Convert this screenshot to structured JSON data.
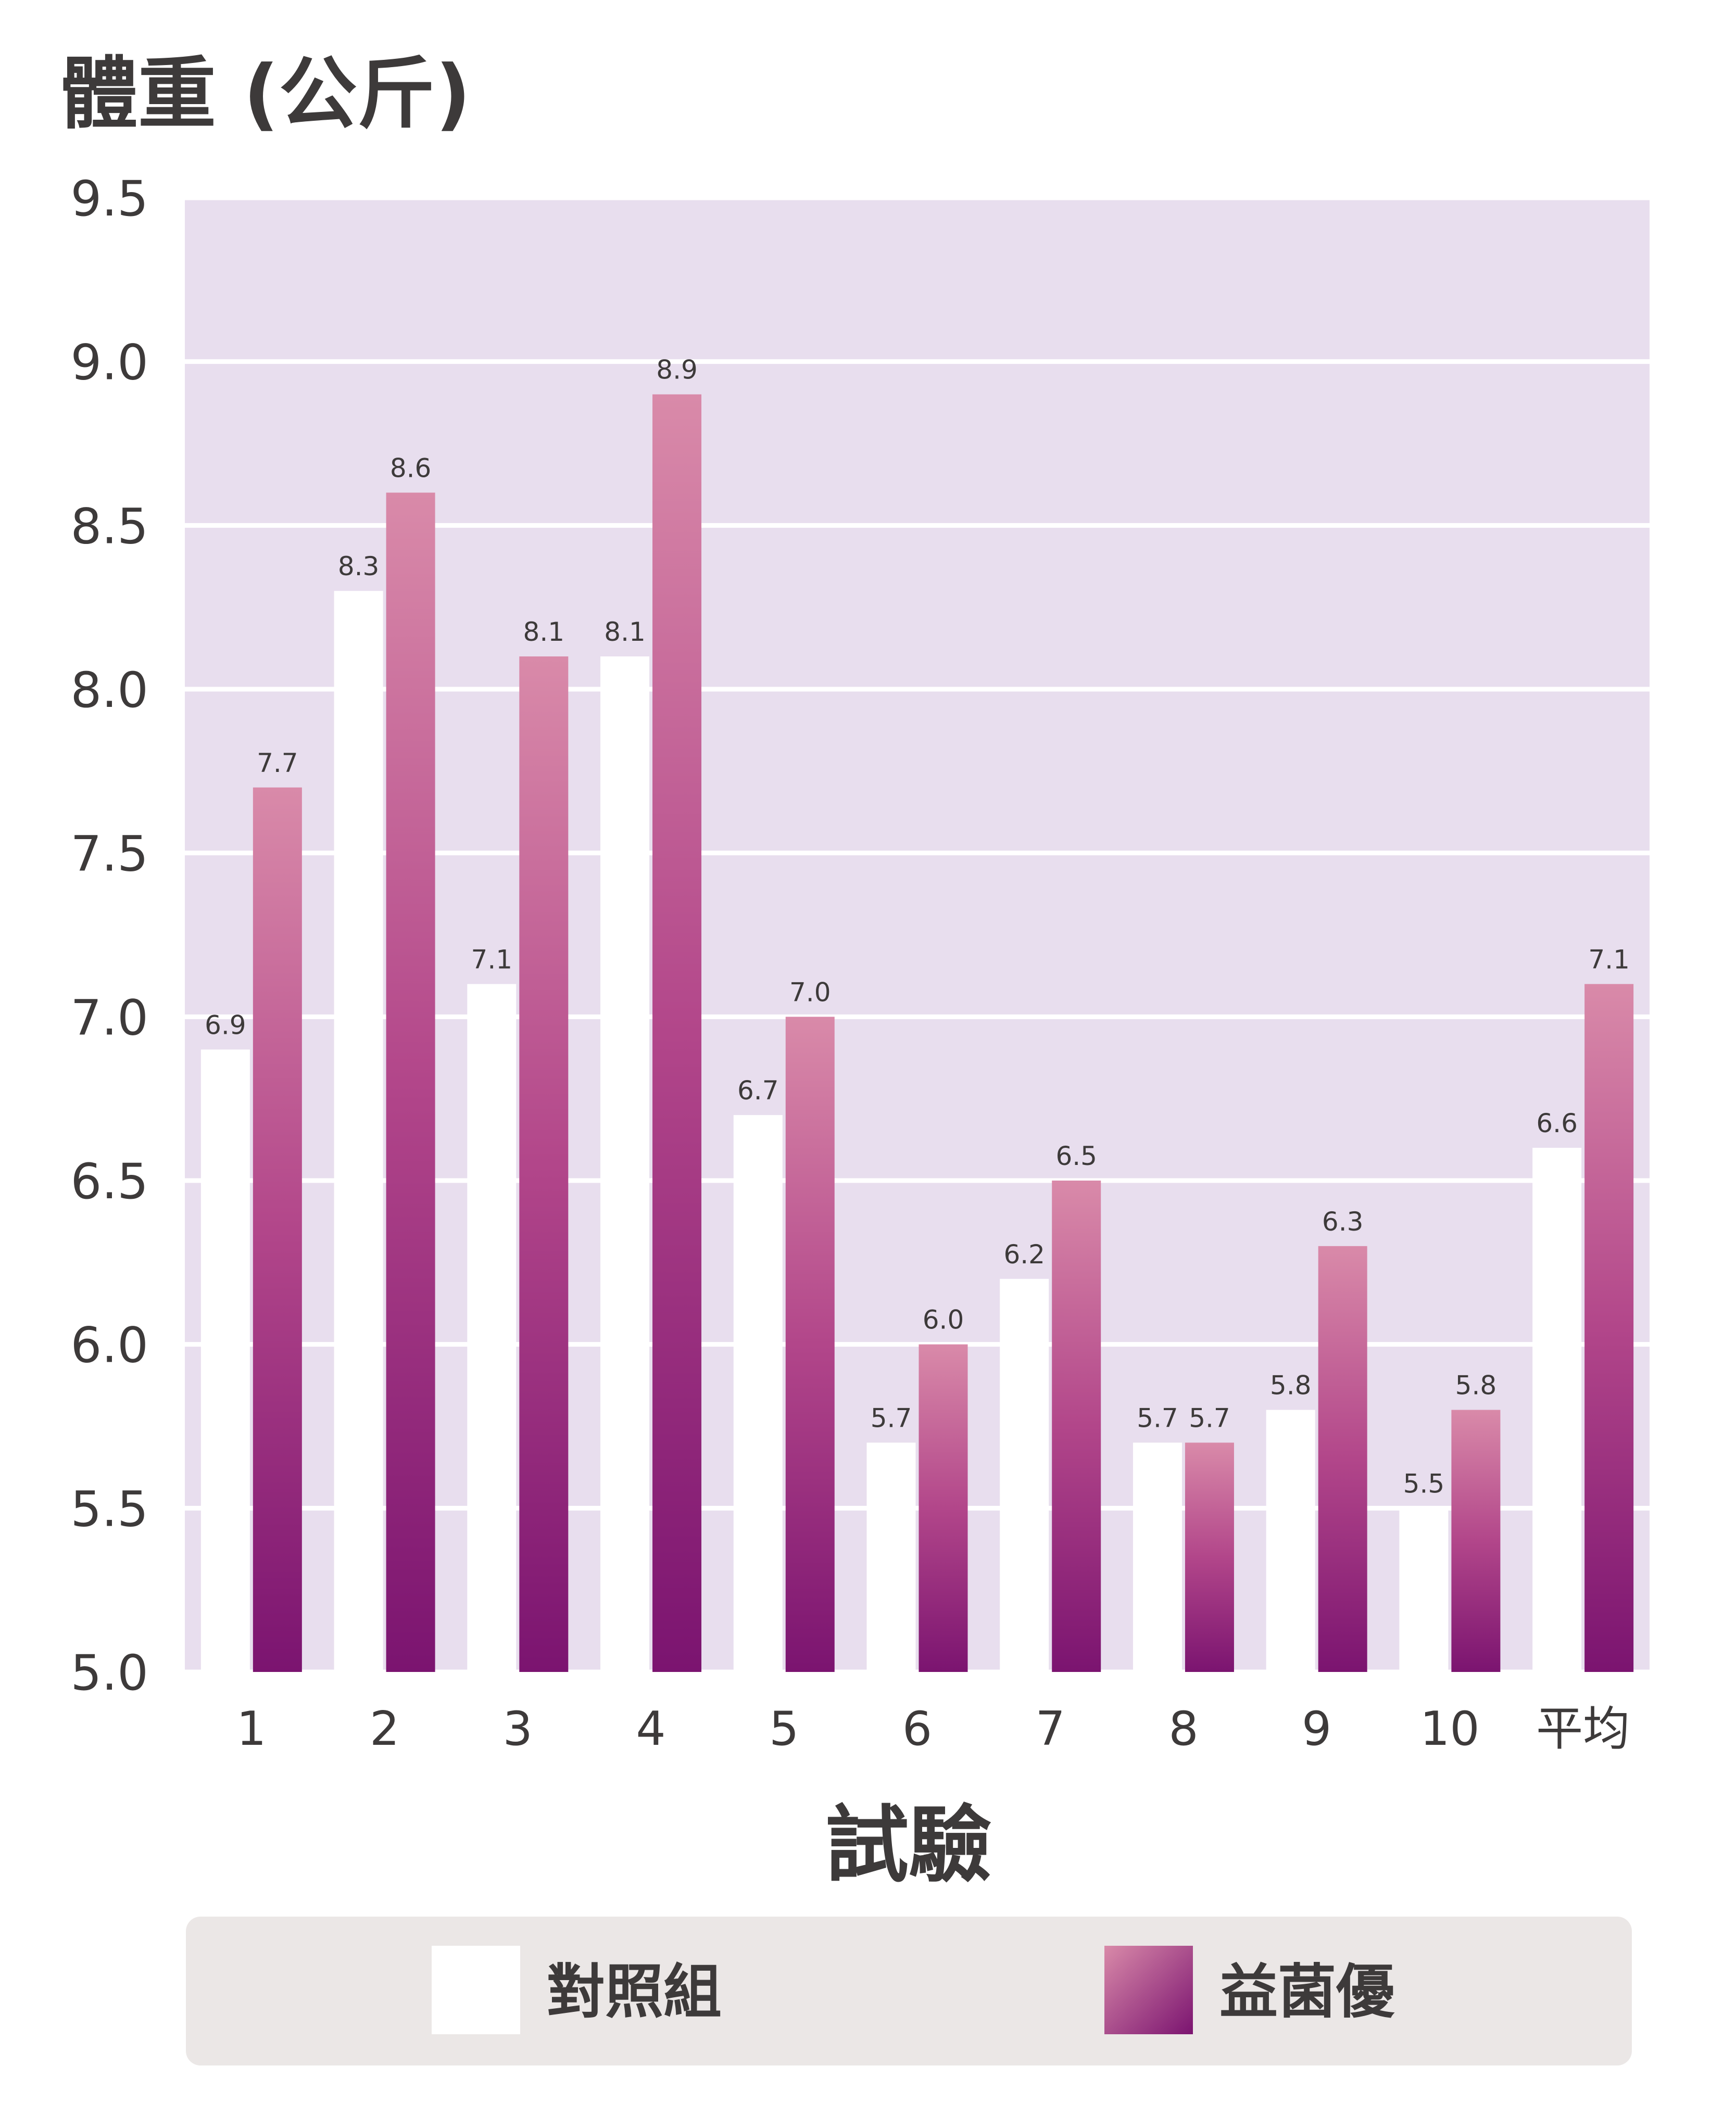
{
  "chart_data": {
    "type": "bar",
    "title": "",
    "ylabel": "體重 (公斤)",
    "xlabel": "試驗",
    "categories": [
      "1",
      "2",
      "3",
      "4",
      "5",
      "6",
      "7",
      "8",
      "9",
      "10",
      "平均"
    ],
    "ylim": [
      5.0,
      9.5
    ],
    "yticks": [
      "5.0",
      "5.5",
      "6.0",
      "6.5",
      "7.0",
      "7.5",
      "8.0",
      "8.5",
      "9.0",
      "9.5"
    ],
    "grid": true,
    "legend_position": "bottom",
    "series": [
      {
        "name": "對照組",
        "color": "#ffffff",
        "values": [
          6.9,
          8.3,
          7.1,
          8.1,
          6.7,
          5.7,
          6.2,
          5.7,
          5.8,
          5.5,
          6.6
        ],
        "labels": [
          "6.9",
          "8.3",
          "7.1",
          "8.1",
          "6.7",
          "5.7",
          "6.2",
          "5.7",
          "5.8",
          "5.5",
          "6.6"
        ]
      },
      {
        "name": "益菌優",
        "color_top": "#d98aa9",
        "color_bottom": "#7b1470",
        "values": [
          7.7,
          8.6,
          8.1,
          8.9,
          7.0,
          6.0,
          6.5,
          5.7,
          6.3,
          5.8,
          7.1
        ],
        "labels": [
          "7.7",
          "8.6",
          "8.1",
          "8.9",
          "7.0",
          "6.0",
          "6.5",
          "5.7",
          "6.3",
          "5.8",
          "7.1"
        ]
      }
    ],
    "plot_background": "#e8deee",
    "legend_background": "#ebe7e6"
  }
}
